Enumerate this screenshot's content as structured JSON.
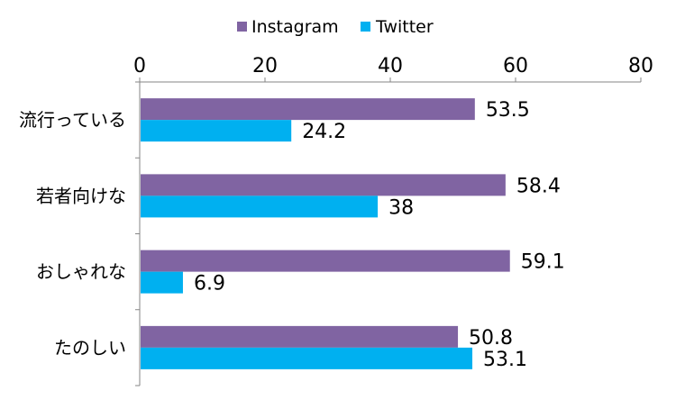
{
  "chart_data": {
    "type": "bar",
    "orientation": "horizontal",
    "categories": [
      "流行っている",
      "若者向けな",
      "おしゃれな",
      "たのしい"
    ],
    "series": [
      {
        "name": "Instagram",
        "color": "#8064a2",
        "values": [
          53.5,
          58.4,
          59.1,
          50.8
        ],
        "labels": [
          "53.5",
          "58.4",
          "59.1",
          "50.8"
        ]
      },
      {
        "name": "Twitter",
        "color": "#00b0f0",
        "values": [
          24.2,
          38,
          6.9,
          53.1
        ],
        "labels": [
          "24.2",
          "38",
          "6.9",
          "53.1"
        ]
      }
    ],
    "xlim": [
      0,
      80
    ],
    "xticks": [
      "0",
      "20",
      "40",
      "60",
      "80"
    ],
    "x_axis_position": "top",
    "legend_position": "top-center",
    "grid": false
  }
}
